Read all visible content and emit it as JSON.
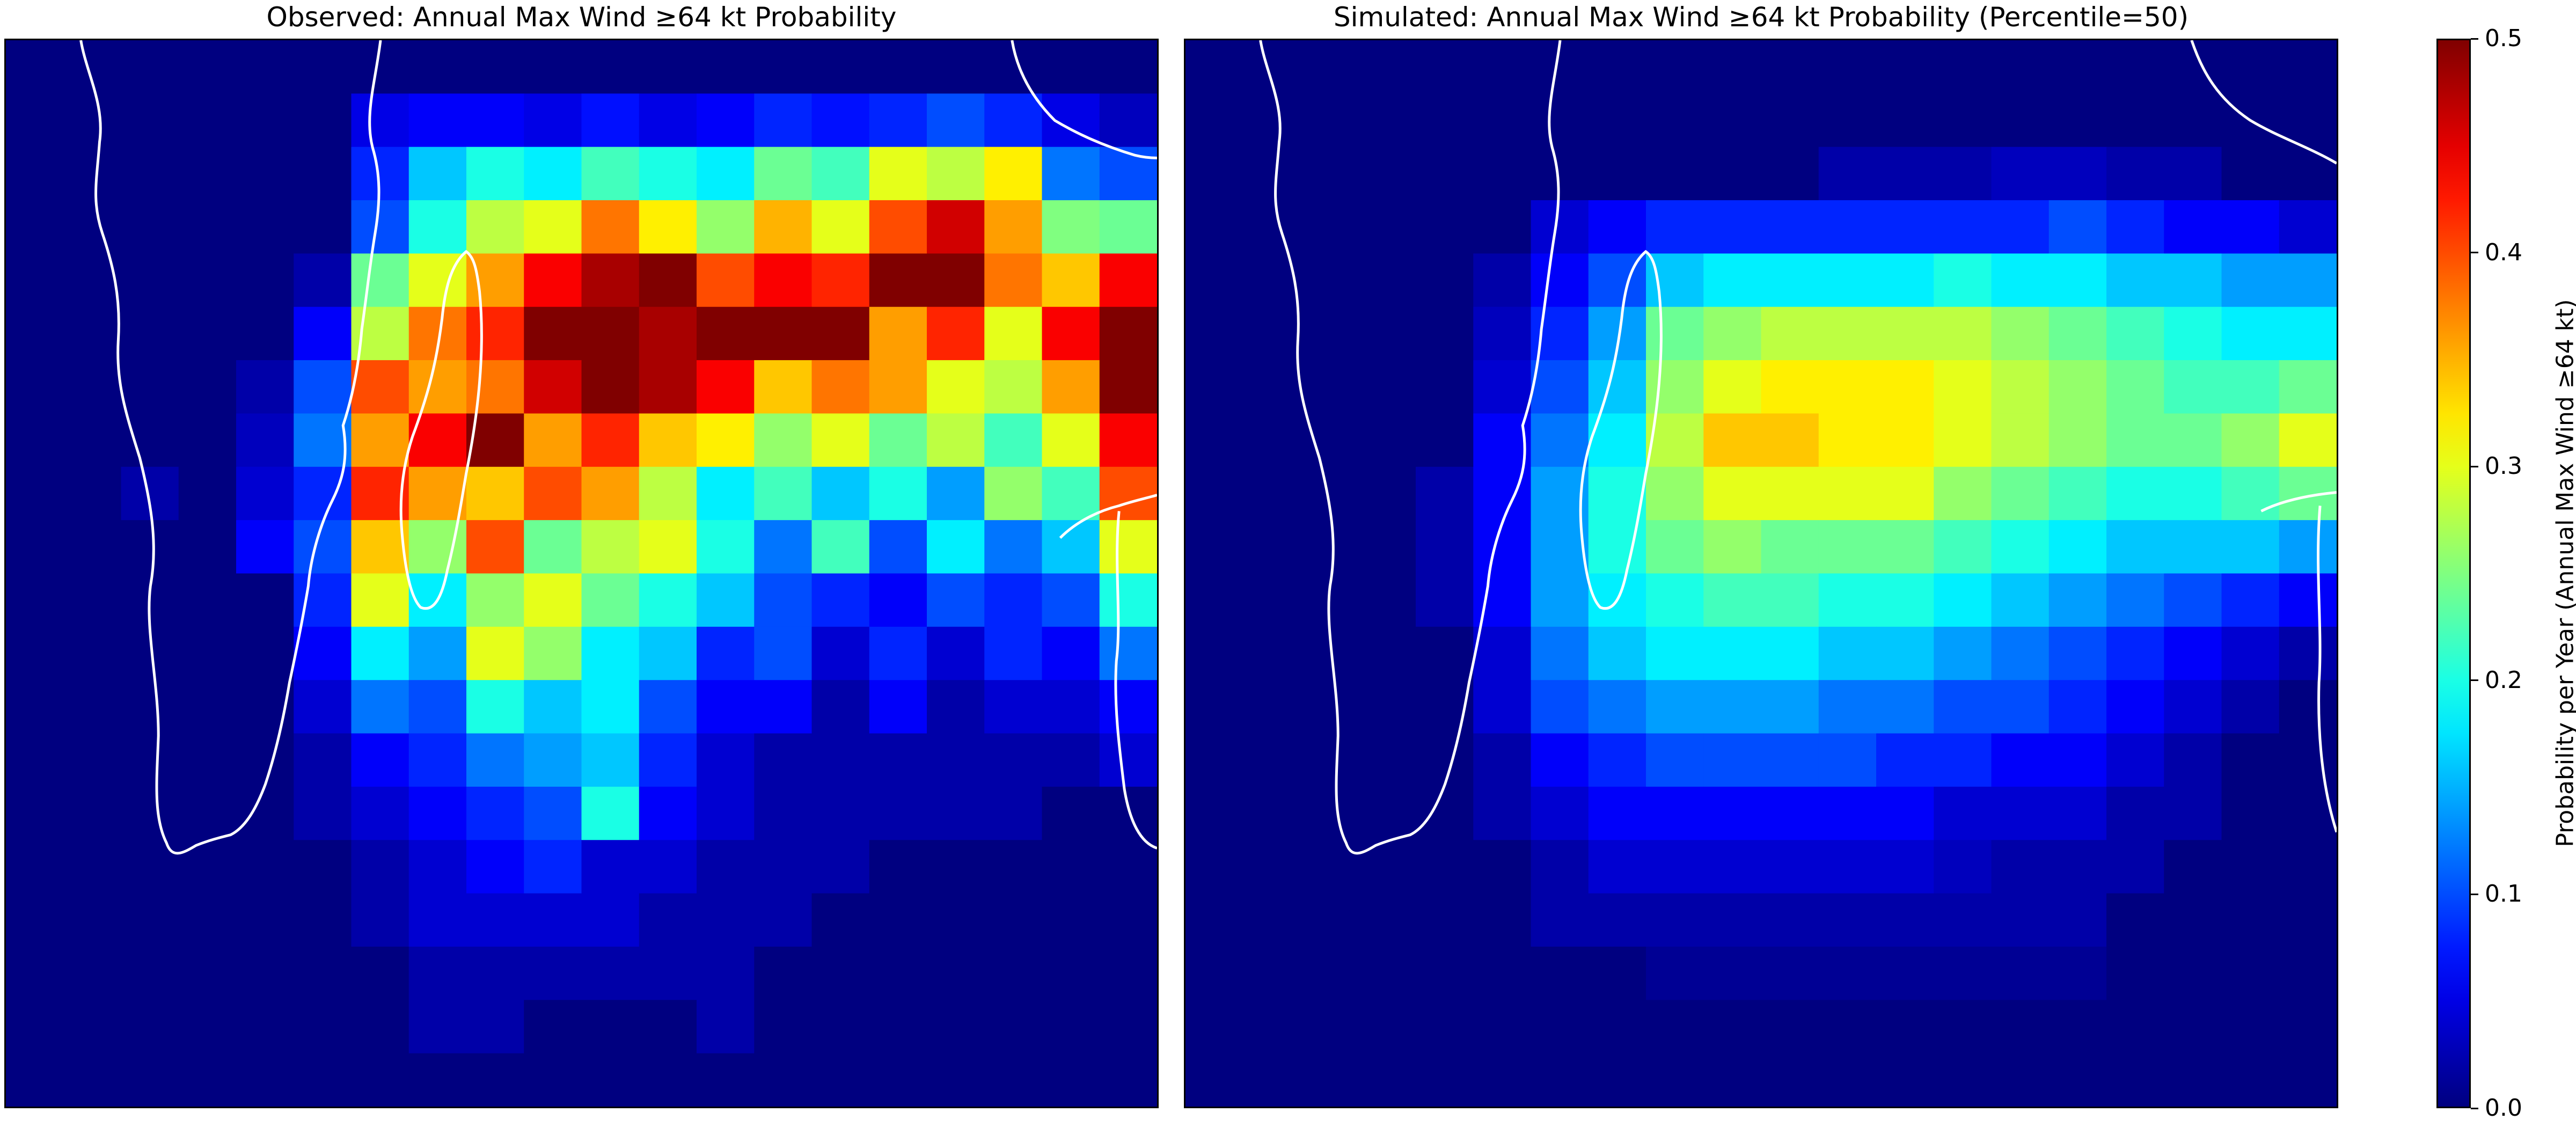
{
  "panels": [
    {
      "title": "Observed: Annual Max Wind ≥64 kt Probability"
    },
    {
      "title": "Simulated: Annual Max Wind ≥64 kt Probability (Percentile=50)"
    }
  ],
  "colorbar": {
    "label": "Probability per Year (Annual Max Wind ≥64 kt)",
    "ticks": [
      "0.0",
      "0.1",
      "0.2",
      "0.3",
      "0.4",
      "0.5"
    ],
    "colormap": "jet"
  },
  "chart_data": [
    {
      "type": "heatmap",
      "title": "Observed: Annual Max Wind ≥64 kt Probability",
      "vmin": 0.0,
      "vmax": 0.5,
      "colormap": "jet",
      "grid_size": [
        20,
        20
      ],
      "coastline_color": "#ffffff",
      "values": [
        [
          0,
          0,
          0,
          0,
          0,
          0,
          0,
          0,
          0,
          0,
          0,
          0,
          0,
          0,
          0,
          0,
          0,
          0,
          0,
          0
        ],
        [
          0,
          0,
          0,
          0,
          0,
          0,
          0.05,
          0.06,
          0.06,
          0.05,
          0.07,
          0.05,
          0.06,
          0.08,
          0.07,
          0.08,
          0.1,
          0.08,
          0.05,
          0.03
        ],
        [
          0,
          0,
          0,
          0,
          0,
          0,
          0.08,
          0.16,
          0.2,
          0.18,
          0.22,
          0.2,
          0.18,
          0.24,
          0.22,
          0.3,
          0.28,
          0.32,
          0.12,
          0.1
        ],
        [
          0,
          0,
          0,
          0,
          0,
          0,
          0.1,
          0.2,
          0.28,
          0.3,
          0.38,
          0.32,
          0.26,
          0.35,
          0.3,
          0.4,
          0.46,
          0.36,
          0.25,
          0.24
        ],
        [
          0,
          0,
          0,
          0,
          0,
          0.02,
          0.24,
          0.3,
          0.36,
          0.44,
          0.48,
          0.5,
          0.4,
          0.44,
          0.42,
          0.5,
          0.5,
          0.38,
          0.34,
          0.44
        ],
        [
          0,
          0,
          0,
          0,
          0,
          0.06,
          0.28,
          0.38,
          0.42,
          0.5,
          0.5,
          0.48,
          0.5,
          0.5,
          0.5,
          0.36,
          0.42,
          0.3,
          0.44,
          0.5
        ],
        [
          0,
          0,
          0,
          0,
          0.02,
          0.1,
          0.4,
          0.36,
          0.38,
          0.46,
          0.5,
          0.48,
          0.44,
          0.34,
          0.38,
          0.36,
          0.3,
          0.28,
          0.36,
          0.5
        ],
        [
          0,
          0,
          0,
          0,
          0.03,
          0.12,
          0.36,
          0.44,
          0.5,
          0.36,
          0.42,
          0.34,
          0.32,
          0.26,
          0.3,
          0.24,
          0.28,
          0.22,
          0.3,
          0.44
        ],
        [
          0,
          0,
          0.02,
          0,
          0.04,
          0.08,
          0.42,
          0.36,
          0.34,
          0.4,
          0.36,
          0.28,
          0.18,
          0.22,
          0.16,
          0.2,
          0.14,
          0.26,
          0.22,
          0.4
        ],
        [
          0,
          0,
          0,
          0,
          0.06,
          0.1,
          0.34,
          0.26,
          0.4,
          0.24,
          0.28,
          0.3,
          0.2,
          0.12,
          0.22,
          0.1,
          0.18,
          0.12,
          0.16,
          0.3
        ],
        [
          0,
          0,
          0,
          0,
          0,
          0.08,
          0.3,
          0.18,
          0.26,
          0.3,
          0.24,
          0.2,
          0.16,
          0.1,
          0.08,
          0.06,
          0.1,
          0.08,
          0.1,
          0.2
        ],
        [
          0,
          0,
          0,
          0,
          0,
          0.06,
          0.18,
          0.14,
          0.3,
          0.26,
          0.18,
          0.16,
          0.08,
          0.1,
          0.04,
          0.08,
          0.04,
          0.08,
          0.06,
          0.12
        ],
        [
          0,
          0,
          0,
          0,
          0,
          0.04,
          0.12,
          0.1,
          0.2,
          0.16,
          0.18,
          0.1,
          0.06,
          0.06,
          0.02,
          0.06,
          0.02,
          0.04,
          0.04,
          0.06
        ],
        [
          0,
          0,
          0,
          0,
          0,
          0.02,
          0.06,
          0.08,
          0.12,
          0.14,
          0.16,
          0.08,
          0.04,
          0.02,
          0.02,
          0.02,
          0.02,
          0.02,
          0.02,
          0.04
        ],
        [
          0,
          0,
          0,
          0,
          0,
          0.02,
          0.04,
          0.06,
          0.08,
          0.1,
          0.2,
          0.06,
          0.04,
          0.02,
          0.02,
          0.02,
          0.02,
          0.02,
          0,
          0
        ],
        [
          0,
          0,
          0,
          0,
          0,
          0,
          0.02,
          0.04,
          0.06,
          0.08,
          0.04,
          0.04,
          0.02,
          0.02,
          0.02,
          0,
          0,
          0,
          0,
          0
        ],
        [
          0,
          0,
          0,
          0,
          0,
          0,
          0.02,
          0.04,
          0.04,
          0.04,
          0.04,
          0.02,
          0.02,
          0.02,
          0,
          0,
          0,
          0,
          0,
          0
        ],
        [
          0,
          0,
          0,
          0,
          0,
          0,
          0,
          0.02,
          0.02,
          0.02,
          0.02,
          0.02,
          0.02,
          0,
          0,
          0,
          0,
          0,
          0,
          0
        ],
        [
          0,
          0,
          0,
          0,
          0,
          0,
          0,
          0.02,
          0.02,
          0,
          0,
          0,
          0.02,
          0,
          0,
          0,
          0,
          0,
          0,
          0
        ],
        [
          0,
          0,
          0,
          0,
          0,
          0,
          0,
          0,
          0,
          0,
          0,
          0,
          0,
          0,
          0,
          0,
          0,
          0,
          0,
          0
        ]
      ]
    },
    {
      "type": "heatmap",
      "title": "Simulated: Annual Max Wind ≥64 kt Probability (Percentile=50)",
      "vmin": 0.0,
      "vmax": 0.5,
      "colormap": "jet",
      "grid_size": [
        20,
        20
      ],
      "coastline_color": "#ffffff",
      "values": [
        [
          0,
          0,
          0,
          0,
          0,
          0,
          0,
          0,
          0,
          0,
          0,
          0,
          0,
          0,
          0,
          0,
          0,
          0,
          0,
          0
        ],
        [
          0,
          0,
          0,
          0,
          0,
          0,
          0,
          0,
          0,
          0,
          0,
          0,
          0,
          0,
          0,
          0,
          0,
          0,
          0,
          0
        ],
        [
          0,
          0,
          0,
          0,
          0,
          0,
          0,
          0,
          0,
          0,
          0,
          0.02,
          0.02,
          0.02,
          0.03,
          0.03,
          0.02,
          0.02,
          0,
          0
        ],
        [
          0,
          0,
          0,
          0,
          0,
          0,
          0.04,
          0.06,
          0.08,
          0.08,
          0.08,
          0.08,
          0.08,
          0.08,
          0.08,
          0.1,
          0.08,
          0.06,
          0.06,
          0.04
        ],
        [
          0,
          0,
          0,
          0,
          0,
          0.02,
          0.06,
          0.1,
          0.16,
          0.18,
          0.18,
          0.18,
          0.18,
          0.2,
          0.18,
          0.18,
          0.16,
          0.16,
          0.14,
          0.14
        ],
        [
          0,
          0,
          0,
          0,
          0,
          0.03,
          0.08,
          0.14,
          0.24,
          0.26,
          0.28,
          0.28,
          0.28,
          0.28,
          0.26,
          0.24,
          0.22,
          0.2,
          0.18,
          0.18
        ],
        [
          0,
          0,
          0,
          0,
          0,
          0.04,
          0.1,
          0.16,
          0.26,
          0.3,
          0.32,
          0.32,
          0.32,
          0.3,
          0.28,
          0.26,
          0.24,
          0.22,
          0.22,
          0.24
        ],
        [
          0,
          0,
          0,
          0,
          0,
          0.06,
          0.12,
          0.18,
          0.28,
          0.34,
          0.34,
          0.32,
          0.32,
          0.3,
          0.28,
          0.26,
          0.24,
          0.24,
          0.26,
          0.3
        ],
        [
          0,
          0,
          0,
          0,
          0.02,
          0.06,
          0.14,
          0.2,
          0.26,
          0.3,
          0.3,
          0.3,
          0.3,
          0.26,
          0.24,
          0.22,
          0.2,
          0.2,
          0.22,
          0.24
        ],
        [
          0,
          0,
          0,
          0,
          0.02,
          0.06,
          0.14,
          0.2,
          0.24,
          0.26,
          0.24,
          0.24,
          0.24,
          0.22,
          0.2,
          0.18,
          0.16,
          0.16,
          0.16,
          0.14
        ],
        [
          0,
          0,
          0,
          0,
          0.02,
          0.06,
          0.14,
          0.18,
          0.2,
          0.22,
          0.22,
          0.2,
          0.2,
          0.18,
          0.16,
          0.14,
          0.12,
          0.1,
          0.08,
          0.06
        ],
        [
          0,
          0,
          0,
          0,
          0,
          0.04,
          0.12,
          0.16,
          0.18,
          0.18,
          0.18,
          0.16,
          0.16,
          0.14,
          0.12,
          0.1,
          0.08,
          0.06,
          0.04,
          0.02
        ],
        [
          0,
          0,
          0,
          0,
          0,
          0.04,
          0.1,
          0.12,
          0.14,
          0.14,
          0.14,
          0.12,
          0.12,
          0.1,
          0.1,
          0.08,
          0.06,
          0.04,
          0.02,
          0
        ],
        [
          0,
          0,
          0,
          0,
          0,
          0.02,
          0.06,
          0.08,
          0.1,
          0.1,
          0.1,
          0.1,
          0.08,
          0.08,
          0.06,
          0.06,
          0.04,
          0.02,
          0,
          0
        ],
        [
          0,
          0,
          0,
          0,
          0,
          0.02,
          0.04,
          0.06,
          0.06,
          0.06,
          0.06,
          0.06,
          0.06,
          0.04,
          0.04,
          0.04,
          0.02,
          0.02,
          0,
          0
        ],
        [
          0,
          0,
          0,
          0,
          0,
          0,
          0.02,
          0.04,
          0.04,
          0.04,
          0.04,
          0.04,
          0.04,
          0.03,
          0.02,
          0.02,
          0.02,
          0,
          0,
          0
        ],
        [
          0,
          0,
          0,
          0,
          0,
          0,
          0.02,
          0.02,
          0.02,
          0.02,
          0.02,
          0.02,
          0.02,
          0.02,
          0.02,
          0.02,
          0,
          0,
          0,
          0
        ],
        [
          0,
          0,
          0,
          0,
          0,
          0,
          0,
          0,
          0.01,
          0.01,
          0.01,
          0.01,
          0.01,
          0.01,
          0.01,
          0.01,
          0,
          0,
          0,
          0
        ],
        [
          0,
          0,
          0,
          0,
          0,
          0,
          0,
          0,
          0,
          0,
          0,
          0,
          0,
          0,
          0,
          0,
          0,
          0,
          0,
          0
        ],
        [
          0,
          0,
          0,
          0,
          0,
          0,
          0,
          0,
          0,
          0,
          0,
          0,
          0,
          0,
          0,
          0,
          0,
          0,
          0,
          0
        ]
      ]
    }
  ]
}
